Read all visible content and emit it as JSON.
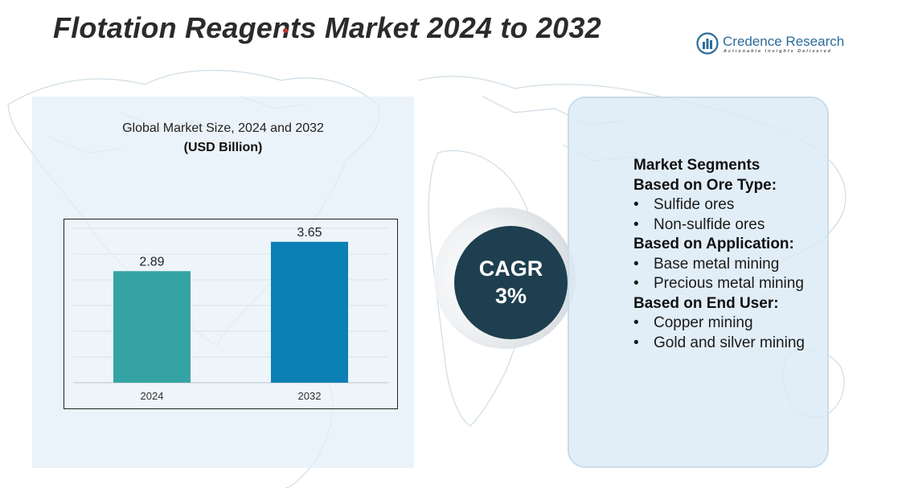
{
  "title": "Flotation Reagents Market 2024 to 2032",
  "logo": {
    "name": "Credence Research",
    "tagline": "Actionable Insights Delivered",
    "icon": "credence-research-logo-icon",
    "brand_color": "#2b6c9a"
  },
  "chart": {
    "heading": "Global Market Size, 2024 and 2032",
    "subheading": "(USD Billion)"
  },
  "chart_data": {
    "type": "bar",
    "categories": [
      "2024",
      "2032"
    ],
    "values": [
      2.89,
      3.65
    ],
    "colors": [
      "#35a3a3",
      "#0b80b5"
    ],
    "data_labels": [
      "2.89",
      "3.65"
    ],
    "ylim": [
      0,
      4
    ],
    "grid": true,
    "legend": "none"
  },
  "cagr": {
    "label": "CAGR",
    "value": "3%",
    "disc_color": "#1e3f4f"
  },
  "segments": {
    "title": "Market Segments",
    "groups": [
      {
        "heading": "Based on Ore Type:",
        "items": [
          "Sulfide ores",
          "Non-sulfide ores"
        ]
      },
      {
        "heading": "Based on Application:",
        "items": [
          "Base metal mining",
          "Precious metal mining"
        ]
      },
      {
        "heading": "Based on End User:",
        "items": [
          "Copper mining",
          "Gold and silver mining"
        ]
      }
    ]
  }
}
